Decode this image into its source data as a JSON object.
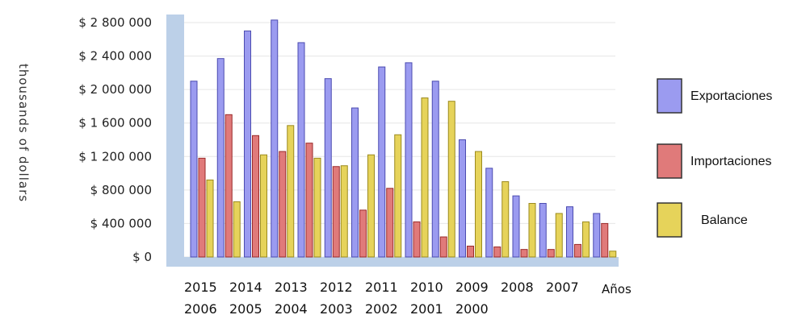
{
  "chart_data": {
    "type": "bar",
    "ylabel": "thousands of dollars",
    "xlabel": "Años",
    "ylim": [
      0,
      2800000
    ],
    "yticks": [
      0,
      400000,
      800000,
      1200000,
      1600000,
      2000000,
      2400000,
      2800000
    ],
    "ytick_labels": [
      "$ 0",
      "$ 400 000",
      "$ 800 000",
      "$ 1 200 000",
      "$ 1 600 000",
      "$ 2 000 000",
      "$ 2 400 000",
      "$ 2 800 000"
    ],
    "categories": [
      "2015",
      "2014",
      "2013",
      "2012",
      "2011",
      "2010",
      "2009",
      "2008",
      "2007",
      "2006",
      "2005",
      "2004",
      "2003",
      "2002",
      "2001",
      "2000"
    ],
    "series": [
      {
        "name": "Exportaciones",
        "color": "#9b9bf0",
        "values": [
          2100000,
          2370000,
          2700000,
          2830000,
          2560000,
          2130000,
          1780000,
          2270000,
          2320000,
          2100000,
          1400000,
          1060000,
          730000,
          640000,
          600000,
          520000
        ]
      },
      {
        "name": "Importaciones",
        "color": "#e07a7a",
        "values": [
          1180000,
          1700000,
          1450000,
          1260000,
          1360000,
          1080000,
          560000,
          820000,
          420000,
          240000,
          130000,
          120000,
          90000,
          90000,
          150000,
          400000
        ]
      },
      {
        "name": "Balance",
        "color": "#e6d35a",
        "values": [
          920000,
          660000,
          1220000,
          1570000,
          1180000,
          1090000,
          1220000,
          1460000,
          1900000,
          1860000,
          1260000,
          900000,
          640000,
          520000,
          420000,
          70000
        ]
      }
    ],
    "legend": "right",
    "grid": true
  }
}
